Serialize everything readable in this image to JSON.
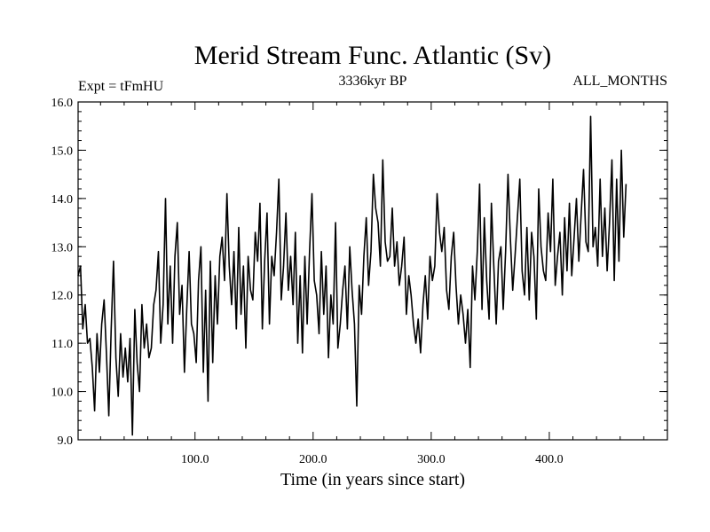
{
  "chart_data": {
    "type": "line",
    "title": "Merid Stream Func. Atlantic (Sv)",
    "subtitle_left": "Expt = tFmHU",
    "subtitle_center": "3336kyr BP",
    "subtitle_right": "ALL_MONTHS",
    "xlabel": "Time (in years since start)",
    "ylabel": "",
    "xlim": [
      1,
      500
    ],
    "ylim": [
      9.0,
      16.0
    ],
    "x_ticks": [
      100,
      200,
      300,
      400
    ],
    "x_tick_labels": [
      "100.0",
      "200.0",
      "300.0",
      "400.0"
    ],
    "y_ticks": [
      9,
      10,
      11,
      12,
      13,
      14,
      15,
      16
    ],
    "y_tick_labels": [
      "9.0",
      "10.0",
      "11.0",
      "12.0",
      "13.0",
      "14.0",
      "15.0",
      "16.0"
    ],
    "grid": false,
    "series": [
      {
        "name": "Merid Stream Func. Atlantic",
        "x_start": 1,
        "x_step": 2,
        "values": [
          12.4,
          12.6,
          11.3,
          11.8,
          11.0,
          11.1,
          10.5,
          9.6,
          11.2,
          10.4,
          11.4,
          11.9,
          10.8,
          9.5,
          11.3,
          12.7,
          10.7,
          9.9,
          11.2,
          10.3,
          10.9,
          10.2,
          11.1,
          9.1,
          11.7,
          10.6,
          10.0,
          11.8,
          10.9,
          11.4,
          10.7,
          10.9,
          11.8,
          12.1,
          12.9,
          11.0,
          11.8,
          14.0,
          11.4,
          12.6,
          11.0,
          12.8,
          13.5,
          11.6,
          12.2,
          10.4,
          11.7,
          12.9,
          11.4,
          11.2,
          10.6,
          12.3,
          13.0,
          10.4,
          12.1,
          9.8,
          12.7,
          10.6,
          12.4,
          11.4,
          12.8,
          13.2,
          12.3,
          14.1,
          12.6,
          11.8,
          12.9,
          11.3,
          13.4,
          11.6,
          12.6,
          10.9,
          12.8,
          12.1,
          11.9,
          13.3,
          12.7,
          13.9,
          11.3,
          12.7,
          13.7,
          11.4,
          12.8,
          12.4,
          13.3,
          14.4,
          11.9,
          12.6,
          13.7,
          12.1,
          12.8,
          11.8,
          13.3,
          11.0,
          12.4,
          10.8,
          12.8,
          11.4,
          12.9,
          14.1,
          12.3,
          12.0,
          11.2,
          12.9,
          11.6,
          12.6,
          10.7,
          12.0,
          11.4,
          13.5,
          10.9,
          11.4,
          12.1,
          12.6,
          11.3,
          13.0,
          12.1,
          11.4,
          9.7,
          12.2,
          11.6,
          12.8,
          13.6,
          12.2,
          12.9,
          14.5,
          13.8,
          13.5,
          12.6,
          14.8,
          13.1,
          12.7,
          12.8,
          13.8,
          12.6,
          13.1,
          12.2,
          12.6,
          13.2,
          11.6,
          12.4,
          12.0,
          11.4,
          11.0,
          11.5,
          10.8,
          11.8,
          12.4,
          11.5,
          12.8,
          12.3,
          12.6,
          14.1,
          13.3,
          12.9,
          13.4,
          12.1,
          11.7,
          12.8,
          13.3,
          12.2,
          11.4,
          12.0,
          11.6,
          11.0,
          11.7,
          10.5,
          12.6,
          11.9,
          12.9,
          14.3,
          11.7,
          13.6,
          12.3,
          11.5,
          13.9,
          12.6,
          11.4,
          12.7,
          13.0,
          11.7,
          12.9,
          14.5,
          13.2,
          12.1,
          12.8,
          13.6,
          14.4,
          12.5,
          12.0,
          13.4,
          11.9,
          13.3,
          12.8,
          11.5,
          14.2,
          13.0,
          12.5,
          12.3,
          13.7,
          12.9,
          14.4,
          12.2,
          12.8,
          13.3,
          12.0,
          13.6,
          12.5,
          13.9,
          12.4,
          13.2,
          14.0,
          12.7,
          13.7,
          14.6,
          13.1,
          12.9,
          15.7,
          13.0,
          13.4,
          12.6,
          14.4,
          12.8,
          13.8,
          12.5,
          13.5,
          14.8,
          12.3,
          14.4,
          12.7,
          15.0,
          13.2,
          14.3
        ]
      }
    ]
  }
}
